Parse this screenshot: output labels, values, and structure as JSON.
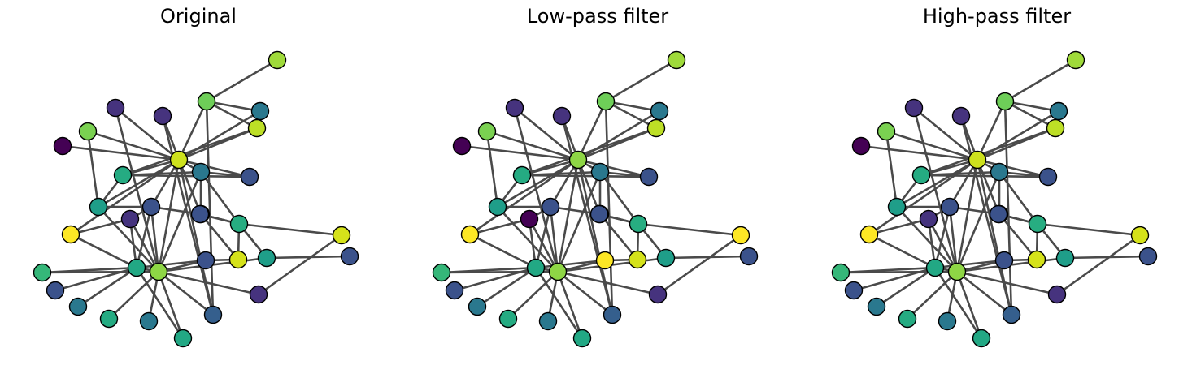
{
  "panels": [
    {
      "title": "Original",
      "node_colors": [
        "#cde11d",
        "#2a788e",
        "#3b528b",
        "#46337e",
        "#7ad151",
        "#25ab82",
        "#1f9e89",
        "#29af7f",
        "#3b528b",
        "#6ece58",
        "#46337e",
        "#fde725",
        "#bddf26",
        "#3b528b",
        "#2a788e",
        "#22a884",
        "#355f8d",
        "#2a788e",
        "#440154",
        "#25ab82",
        "#d5e21a",
        "#3b528b",
        "#46337e",
        "#2a788e",
        "#3b528b",
        "#22a884",
        "#35b779",
        "#9fda3a",
        "#27ad81",
        "#1f9e89",
        "#d5e21a",
        "#8ed645",
        "#45337e",
        "#3b528b"
      ]
    },
    {
      "title": "Low-pass filter",
      "node_colors": [
        "#8ed645",
        "#2a788e",
        "#3b528b",
        "#46337e",
        "#7ad151",
        "#25ab82",
        "#1f9e89",
        "#29af7f",
        "#3b528b",
        "#6ece58",
        "#46337e",
        "#fde725",
        "#bddf26",
        "#3b528b",
        "#2a788e",
        "#22a884",
        "#355f8d",
        "#2a788e",
        "#440154",
        "#25ab82",
        "#d5e21a",
        "#3b528b",
        "#46337e",
        "#2a788e",
        "#3b528b",
        "#22a884",
        "#35b779",
        "#9fda3a",
        "#27ad81",
        "#1f9e89",
        "#fde725",
        "#8ed645",
        "#440154",
        "#fde725"
      ]
    },
    {
      "title": "High-pass filter",
      "node_colors": [
        "#cde11d",
        "#2a788e",
        "#3b528b",
        "#46337e",
        "#7ad151",
        "#25ab82",
        "#1f9e89",
        "#29af7f",
        "#3b528b",
        "#6ece58",
        "#46337e",
        "#fde725",
        "#bddf26",
        "#3b528b",
        "#2a788e",
        "#22a884",
        "#355f8d",
        "#2a788e",
        "#440154",
        "#25ab82",
        "#d5e21a",
        "#3b528b",
        "#46337e",
        "#2a788e",
        "#3b528b",
        "#22a884",
        "#35b779",
        "#9fda3a",
        "#27ad81",
        "#1f9e89",
        "#d5e21a",
        "#8ed645",
        "#45337e",
        "#3b528b"
      ]
    }
  ]
}
